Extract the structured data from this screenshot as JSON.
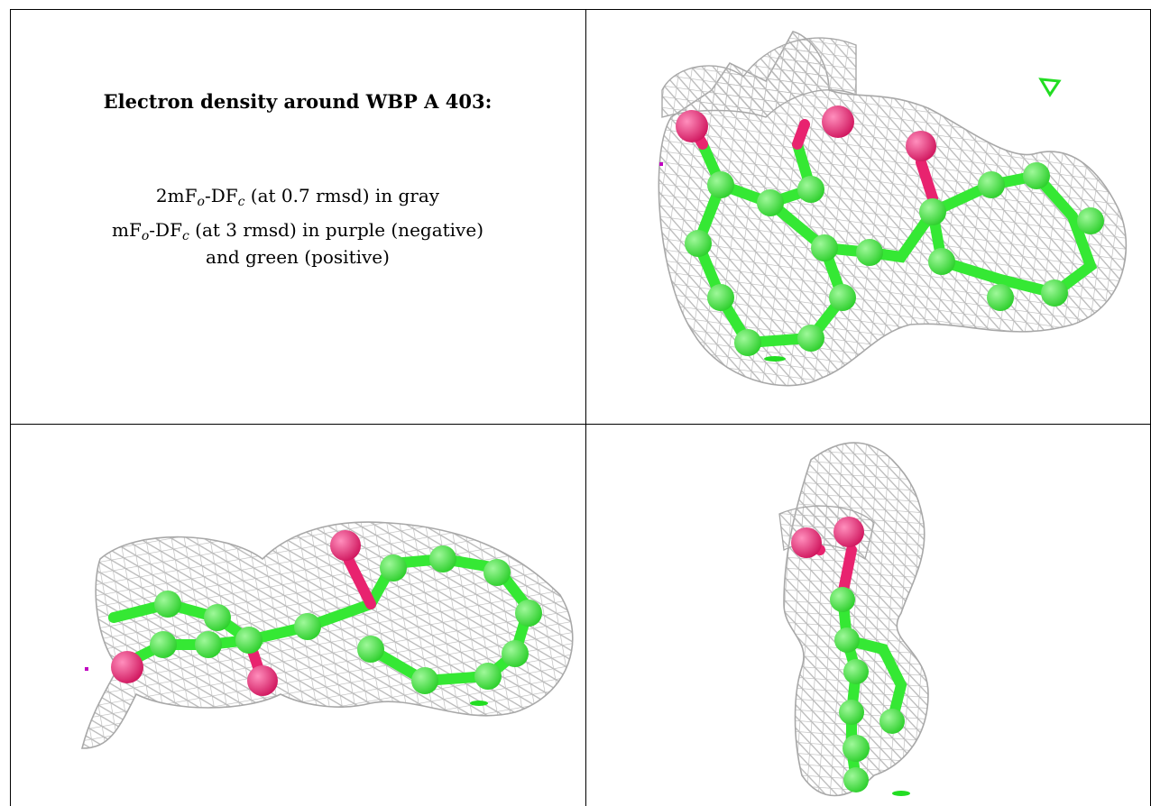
{
  "title": "Electron density around WBP A 403:",
  "caption": {
    "line1": {
      "prefix": "2mF",
      "sub1": "o",
      "mid": "-DF",
      "sub2": "c",
      "rest": " (at 0.7 rmsd) in gray"
    },
    "line2": {
      "prefix": "mF",
      "sub1": "o",
      "mid": "-DF",
      "sub2": "c",
      "rest": " (at 3 rmsd) in purple (negative)"
    },
    "line3": "and green (positive)"
  },
  "colors": {
    "mesh": "#b8b8b8",
    "carbon": "#35e834",
    "oxygen": "#e8236f",
    "negative": "#c000c0",
    "positive": "#22dd22",
    "rule": "#000000"
  },
  "panels": [
    "view-top-right",
    "view-bottom-left",
    "view-bottom-right"
  ]
}
